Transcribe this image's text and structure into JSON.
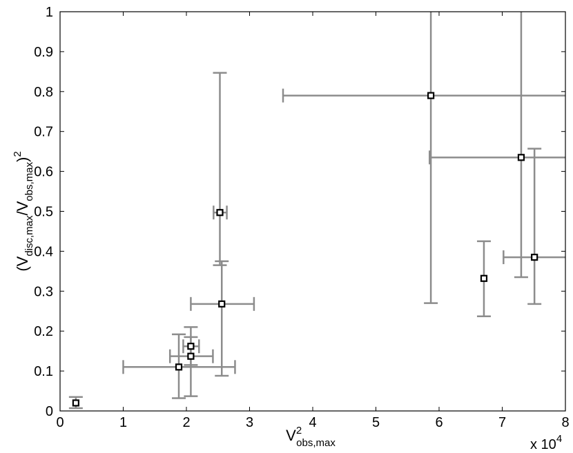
{
  "chart_data": {
    "type": "scatter",
    "title": "",
    "xlabel": {
      "base": "V",
      "superscript": "2",
      "subscript": "obs,max"
    },
    "ylabel": {
      "open": "(V",
      "sub1": "disc,max",
      "mid": "/V",
      "sub2": "obs,max",
      "close": ")",
      "superscript": "2"
    },
    "x_multiplier": {
      "base": "x 10",
      "exponent": "4"
    },
    "xlim": [
      0,
      8
    ],
    "ylim": [
      0,
      1
    ],
    "xticks": [
      "0",
      "1",
      "2",
      "3",
      "4",
      "5",
      "6",
      "7",
      "8"
    ],
    "yticks": [
      "0",
      "0.1",
      "0.2",
      "0.3",
      "0.4",
      "0.5",
      "0.6",
      "0.7",
      "0.8",
      "0.9",
      "1"
    ],
    "grid": false,
    "legend": "none",
    "colors": {
      "errorbar": "#8c8c8c",
      "marker": "#000000",
      "axis": "#000000"
    },
    "points": [
      {
        "x": 0.25,
        "y": 0.02,
        "xlo": 0.25,
        "xhi": 0.25,
        "ylo": 0.007,
        "yhi": 0.035
      },
      {
        "x": 1.88,
        "y": 0.11,
        "xlo": 1.0,
        "xhi": 2.77,
        "ylo": 0.032,
        "yhi": 0.192
      },
      {
        "x": 2.07,
        "y": 0.137,
        "xlo": 1.74,
        "xhi": 2.42,
        "ylo": 0.037,
        "yhi": 0.185
      },
      {
        "x": 2.07,
        "y": 0.162,
        "xlo": 1.95,
        "xhi": 2.2,
        "ylo": 0.115,
        "yhi": 0.21
      },
      {
        "x": 2.53,
        "y": 0.497,
        "xlo": 2.43,
        "xhi": 2.64,
        "ylo": 0.365,
        "yhi": 0.847
      },
      {
        "x": 2.56,
        "y": 0.268,
        "xlo": 2.07,
        "xhi": 3.07,
        "ylo": 0.088,
        "yhi": 0.375
      },
      {
        "x": 5.87,
        "y": 0.79,
        "xlo": 3.53,
        "xhi": 8.0,
        "ylo": 0.27,
        "yhi": 1.0
      },
      {
        "x": 6.71,
        "y": 0.332,
        "xlo": 6.71,
        "xhi": 6.71,
        "ylo": 0.237,
        "yhi": 0.425
      },
      {
        "x": 7.3,
        "y": 0.635,
        "xlo": 5.85,
        "xhi": 8.0,
        "ylo": 0.335,
        "yhi": 1.0
      },
      {
        "x": 7.51,
        "y": 0.385,
        "xlo": 7.02,
        "xhi": 8.0,
        "ylo": 0.268,
        "yhi": 0.657
      }
    ]
  }
}
